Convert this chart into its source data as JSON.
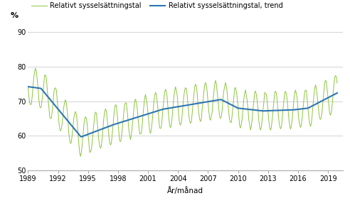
{
  "ylabel": "%",
  "xlabel": "År/månad",
  "legend1": "Relativt sysselsättningstal",
  "legend2": "Relativt sysselsättningstal, trend",
  "ylim": [
    50,
    92
  ],
  "yticks": [
    50,
    60,
    70,
    80,
    90
  ],
  "xticks": [
    1989,
    1992,
    1995,
    1998,
    2001,
    2004,
    2007,
    2010,
    2013,
    2016,
    2019
  ],
  "xlim": [
    1989,
    2020.5
  ],
  "color_raw": "#8dc63f",
  "color_trend": "#2e75b6",
  "background": "#ffffff",
  "grid_color": "#cccccc",
  "spine_color": "#aaaaaa"
}
